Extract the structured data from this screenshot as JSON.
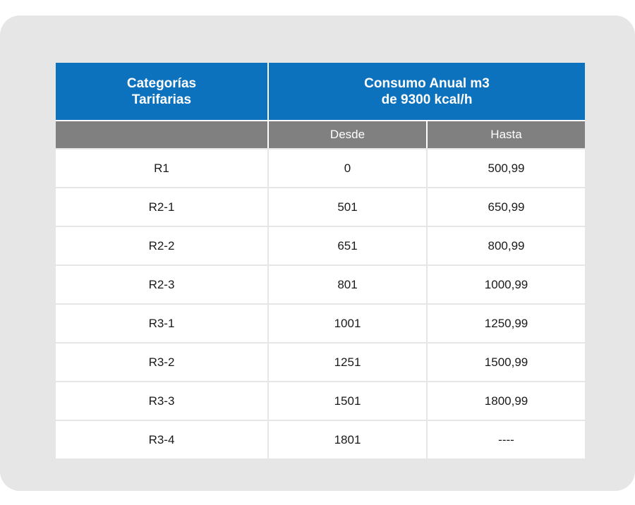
{
  "table": {
    "header": {
      "category_line1": "Categorías",
      "category_line2": "Tarifarias",
      "consumption_line1": "Consumo Anual m3",
      "consumption_line2": "de 9300 kcal/h"
    },
    "subheader": {
      "category": "",
      "from": "Desde",
      "to": "Hasta"
    },
    "rows": [
      {
        "category": "R1",
        "from": "0",
        "to": "500,99"
      },
      {
        "category": "R2-1",
        "from": "501",
        "to": "650,99"
      },
      {
        "category": "R2-2",
        "from": "651",
        "to": "800,99"
      },
      {
        "category": "R2-3",
        "from": "801",
        "to": "1000,99"
      },
      {
        "category": "R3-1",
        "from": "1001",
        "to": "1250,99"
      },
      {
        "category": "R3-2",
        "from": "1251",
        "to": "1500,99"
      },
      {
        "category": "R3-3",
        "from": "1501",
        "to": "1800,99"
      },
      {
        "category": "R3-4",
        "from": "1801",
        "to": "----"
      }
    ]
  },
  "colors": {
    "header_blue": "#0d72be",
    "subheader_gray": "#808080",
    "card_background": "#e6e6e6"
  }
}
